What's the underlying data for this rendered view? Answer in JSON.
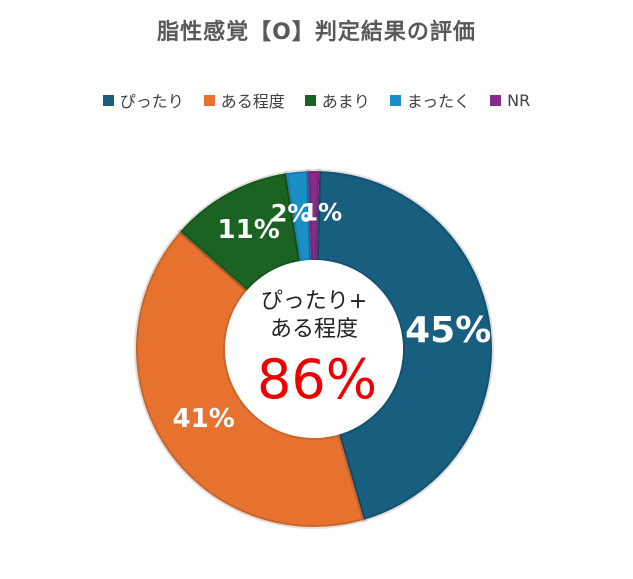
{
  "chart_data": {
    "type": "pie",
    "variant": "donut",
    "title": "脂性感覚【O】判定結果の評価",
    "categories": [
      "ぴったり",
      "ある程度",
      "あまり",
      "まったく",
      "NR"
    ],
    "values": [
      45,
      41,
      11,
      2,
      1
    ],
    "data_labels": [
      "45%",
      "41%",
      "11%",
      "2%",
      "1%"
    ],
    "colors": [
      "#175e7f",
      "#e7722f",
      "#1a6323",
      "#1a8fc7",
      "#8a2a8b"
    ],
    "legend_position": "top",
    "center_text": {
      "line1": "ぴったり+",
      "line2": "ある程度",
      "value": "86%"
    }
  }
}
